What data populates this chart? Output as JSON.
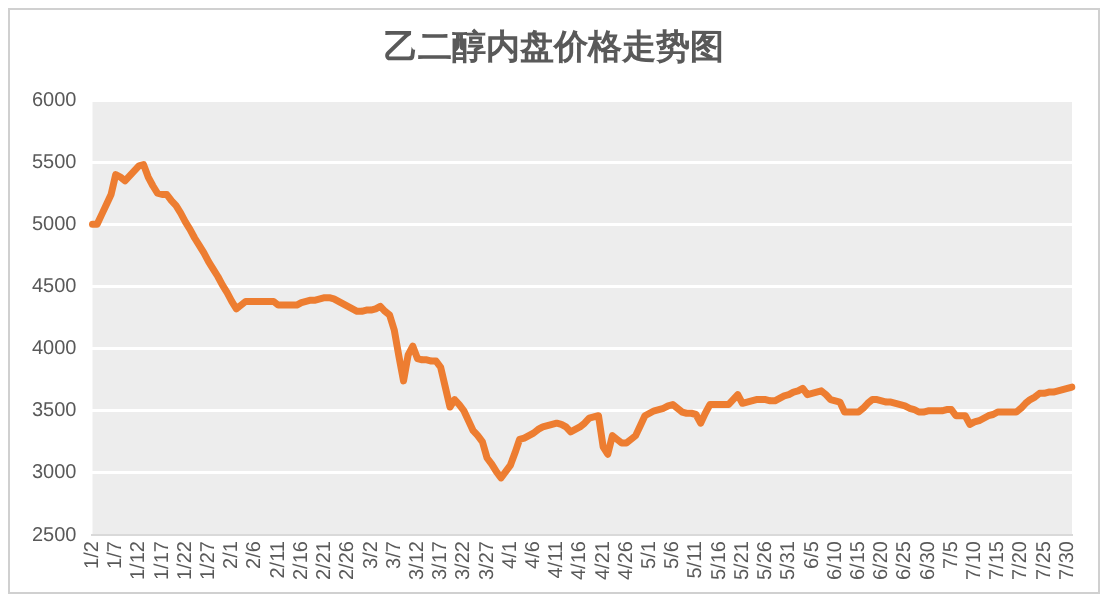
{
  "chart_data": {
    "type": "line",
    "title": "乙二醇内盘价格走势图",
    "categories": [
      "1/2",
      null,
      null,
      null,
      null,
      "1/7",
      null,
      null,
      null,
      null,
      "1/12",
      null,
      null,
      null,
      null,
      "1/17",
      null,
      null,
      null,
      null,
      "1/22",
      null,
      null,
      null,
      null,
      "1/27",
      null,
      null,
      null,
      null,
      "2/1",
      null,
      null,
      null,
      null,
      "2/6",
      null,
      null,
      null,
      null,
      "2/11",
      null,
      null,
      null,
      null,
      "2/16",
      null,
      null,
      null,
      null,
      "2/21",
      null,
      null,
      null,
      null,
      "2/26",
      null,
      null,
      null,
      null,
      "3/2",
      null,
      null,
      null,
      null,
      "3/7",
      null,
      null,
      null,
      null,
      "3/12",
      null,
      null,
      null,
      null,
      "3/17",
      null,
      null,
      null,
      null,
      "3/22",
      null,
      null,
      null,
      null,
      "3/27",
      null,
      null,
      null,
      null,
      "4/1",
      null,
      null,
      null,
      null,
      "4/6",
      null,
      null,
      null,
      null,
      "4/11",
      null,
      null,
      null,
      null,
      "4/16",
      null,
      null,
      null,
      null,
      "4/21",
      null,
      null,
      null,
      null,
      "4/26",
      null,
      null,
      null,
      null,
      "5/1",
      null,
      null,
      null,
      null,
      "5/6",
      null,
      null,
      null,
      null,
      "5/11",
      null,
      null,
      null,
      null,
      "5/16",
      null,
      null,
      null,
      null,
      "5/21",
      null,
      null,
      null,
      null,
      "5/26",
      null,
      null,
      null,
      null,
      "5/31",
      null,
      null,
      null,
      null,
      "6/5",
      null,
      null,
      null,
      null,
      "6/10",
      null,
      null,
      null,
      null,
      "6/15",
      null,
      null,
      null,
      null,
      "6/20",
      null,
      null,
      null,
      null,
      "6/25",
      null,
      null,
      null,
      null,
      "6/30",
      null,
      null,
      null,
      null,
      "7/5",
      null,
      null,
      null,
      null,
      "7/10",
      null,
      null,
      null,
      null,
      "7/15",
      null,
      null,
      null,
      null,
      "7/20",
      null,
      null,
      null,
      null,
      "7/25",
      null,
      null,
      null,
      null,
      "7/30",
      null
    ],
    "series": [
      {
        "color": "#ed7d31",
        "values": [
          5000,
          5000,
          5080,
          5160,
          5240,
          5400,
          5380,
          5350,
          5390,
          5430,
          5470,
          5480,
          5380,
          5310,
          5250,
          5240,
          5240,
          5190,
          5150,
          5090,
          5020,
          4960,
          4890,
          4830,
          4770,
          4700,
          4640,
          4580,
          4510,
          4450,
          4380,
          4320,
          4350,
          4380,
          4380,
          4380,
          4380,
          4380,
          4380,
          4380,
          4350,
          4350,
          4350,
          4350,
          4350,
          4370,
          4380,
          4390,
          4390,
          4400,
          4410,
          4410,
          4400,
          4380,
          4360,
          4340,
          4320,
          4300,
          4300,
          4310,
          4310,
          4320,
          4340,
          4300,
          4270,
          4150,
          3940,
          3740,
          3950,
          4020,
          3920,
          3910,
          3910,
          3900,
          3900,
          3850,
          3690,
          3530,
          3590,
          3550,
          3500,
          3420,
          3340,
          3300,
          3250,
          3120,
          3070,
          3010,
          2960,
          3010,
          3060,
          3160,
          3270,
          3280,
          3300,
          3320,
          3350,
          3370,
          3380,
          3390,
          3400,
          3390,
          3370,
          3330,
          3350,
          3370,
          3400,
          3440,
          3450,
          3460,
          3210,
          3150,
          3300,
          3270,
          3240,
          3240,
          3270,
          3300,
          3380,
          3460,
          3480,
          3500,
          3510,
          3520,
          3540,
          3550,
          3520,
          3490,
          3480,
          3480,
          3470,
          3400,
          3480,
          3550,
          3550,
          3550,
          3550,
          3550,
          3590,
          3630,
          3560,
          3570,
          3580,
          3590,
          3590,
          3590,
          3580,
          3580,
          3600,
          3620,
          3630,
          3650,
          3660,
          3680,
          3630,
          3640,
          3650,
          3660,
          3630,
          3590,
          3580,
          3570,
          3490,
          3490,
          3490,
          3490,
          3520,
          3560,
          3590,
          3590,
          3580,
          3570,
          3570,
          3560,
          3550,
          3540,
          3520,
          3510,
          3490,
          3490,
          3500,
          3500,
          3500,
          3500,
          3510,
          3510,
          3460,
          3460,
          3460,
          3390,
          3410,
          3420,
          3440,
          3460,
          3470,
          3490,
          3490,
          3490,
          3490,
          3490,
          3520,
          3560,
          3590,
          3610,
          3640,
          3640,
          3650,
          3650,
          3660,
          3670,
          3680,
          3690
        ]
      }
    ],
    "ylim": [
      2500,
      6000
    ],
    "yticks": [
      2500,
      3000,
      3500,
      4000,
      4500,
      5000,
      5500,
      6000
    ],
    "grid": "y",
    "legend": false,
    "marker": "none",
    "line_style": "solid"
  }
}
